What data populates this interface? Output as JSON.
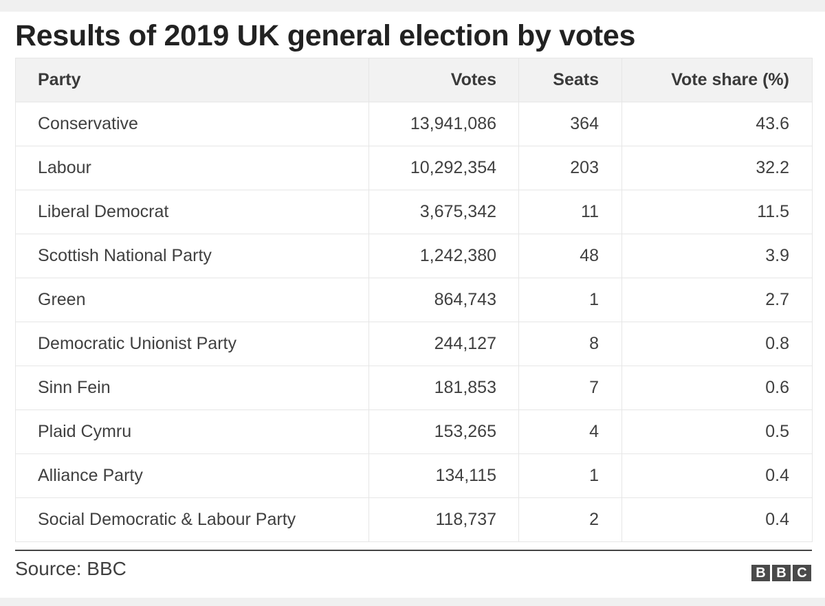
{
  "title": "Results of 2019 UK general election by votes",
  "columns": [
    "Party",
    "Votes",
    "Seats",
    "Vote share (%)"
  ],
  "chart_data": {
    "type": "table",
    "title": "Results of 2019 UK general election by votes",
    "columns": [
      "Party",
      "Votes",
      "Seats",
      "Vote share (%)"
    ],
    "rows": [
      [
        "Conservative",
        "13,941,086",
        "364",
        "43.6"
      ],
      [
        "Labour",
        "10,292,354",
        "203",
        "32.2"
      ],
      [
        "Liberal Democrat",
        "3,675,342",
        "11",
        "11.5"
      ],
      [
        "Scottish National Party",
        "1,242,380",
        "48",
        "3.9"
      ],
      [
        "Green",
        "864,743",
        "1",
        "2.7"
      ],
      [
        "Democratic Unionist Party",
        "244,127",
        "8",
        "0.8"
      ],
      [
        "Sinn Fein",
        "181,853",
        "7",
        "0.6"
      ],
      [
        "Plaid Cymru",
        "153,265",
        "4",
        "0.5"
      ],
      [
        "Alliance Party",
        "134,115",
        "1",
        "0.4"
      ],
      [
        "Social Democratic & Labour Party",
        "118,737",
        "2",
        "0.4"
      ]
    ]
  },
  "source": "Source: BBC",
  "logo": {
    "letters": [
      "B",
      "B",
      "C"
    ]
  },
  "colors": {
    "background": "#f0f0f0",
    "card": "#ffffff",
    "header_row": "#f2f2f2",
    "text": "#404040",
    "title": "#222222",
    "logo": "#4a4a4a"
  }
}
